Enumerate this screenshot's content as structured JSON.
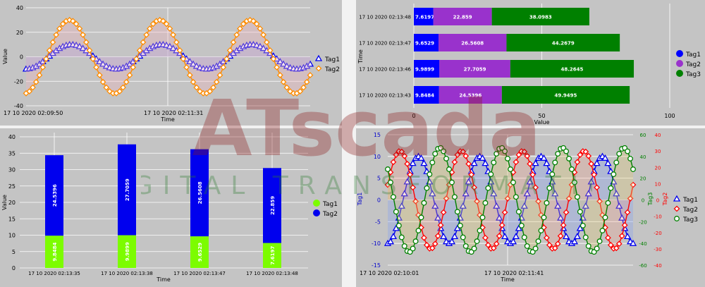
{
  "watermark": {
    "brand": "ATscada",
    "tagline": "DIGITAL TRANSFORMATION"
  },
  "chart_data": [
    {
      "type": "line",
      "xlabel": "Time",
      "ylabel": "Value",
      "ylim": [
        -40,
        40
      ],
      "yticks": [
        -40,
        -20,
        0,
        20,
        40
      ],
      "xticklabels": [
        "17 10 2020 02:09:50",
        "17 10 2020 02:11:31"
      ],
      "legend": "right",
      "series": [
        {
          "name": "Tag1",
          "color": "#0000ee",
          "marker": "triangle",
          "amplitude": 10,
          "period_points": 27,
          "n": 86
        },
        {
          "name": "Tag2",
          "color": "#ff8c00",
          "marker": "diamond",
          "amplitude": 30,
          "period_points": 27,
          "n": 86
        }
      ]
    },
    {
      "type": "bar",
      "orientation": "horizontal",
      "stacked": true,
      "categories": [
        "17 10 2020 02:13:48",
        "17 10 2020 02:13:47",
        "17 10 2020 02:13:46",
        "17 10 2020 02:13:43"
      ],
      "xlabel": "Value",
      "ylabel": "Time",
      "xlim": [
        0,
        100
      ],
      "xticks": [
        0,
        50,
        100
      ],
      "legend": "right",
      "series": [
        {
          "name": "Tag1",
          "color": "#0000ff",
          "values": [
            7.6197,
            9.6529,
            9.9899,
            9.8484
          ],
          "labels": [
            "7.6197",
            "9.6529",
            "9.9899",
            "9.8484"
          ]
        },
        {
          "name": "Tag2",
          "color": "#9932cc",
          "values": [
            22.859,
            26.5608,
            27.7059,
            24.5396
          ],
          "labels": [
            "22.859",
            "26.5608",
            "27.7059",
            "24.5396"
          ]
        },
        {
          "name": "Tag3",
          "color": "#008000",
          "values": [
            38.0983,
            44.2679,
            48.2645,
            49.9495
          ],
          "labels": [
            "38.0983",
            "44.2679",
            "48.2645",
            "49.9495"
          ]
        }
      ]
    },
    {
      "type": "bar",
      "orientation": "vertical",
      "stacked": true,
      "categories": [
        "17 10 2020 02:13:35",
        "17 10 2020 02:13:38",
        "17 10 2020 02:13:47",
        "17 10 2020 02:13:48"
      ],
      "xlabel": "Time",
      "ylabel": "Value",
      "ylim": [
        0,
        40
      ],
      "yticks": [
        0,
        5,
        10,
        15,
        20,
        25,
        30,
        35,
        40
      ],
      "legend": "right",
      "series": [
        {
          "name": "Tag1",
          "color": "#7cfc00",
          "values": [
            9.8484,
            9.9899,
            9.6529,
            7.6197
          ],
          "labels": [
            "9.8484",
            "9.9899",
            "9.6529",
            "7.6197"
          ]
        },
        {
          "name": "Tag2",
          "color": "#0000ee",
          "values": [
            24.5396,
            27.7059,
            26.5608,
            22.859
          ],
          "labels": [
            "24.5396",
            "27.7059",
            "26.5608",
            "22.859"
          ]
        }
      ]
    },
    {
      "type": "line",
      "xlabel": "Time",
      "axes": {
        "tag1": {
          "label": "Tag1",
          "range": [
            -15,
            15
          ],
          "color": "#0000cc"
        },
        "tag3": {
          "label": "Tag3",
          "range": [
            -60,
            60
          ],
          "color": "#008000"
        },
        "tag2": {
          "label": "Tag2",
          "range": [
            -40,
            40
          ],
          "color": "#ff0000"
        }
      },
      "tag1ticks": [
        -15,
        -10,
        -5,
        0,
        5,
        10,
        15
      ],
      "tag3ticks": [
        -60,
        -40,
        -20,
        0,
        20,
        40,
        60
      ],
      "tag2ticks": [
        -40,
        -30,
        -20,
        -10,
        0,
        10,
        20,
        30,
        40
      ],
      "xticklabels": [
        "17 10 2020 02:10:01",
        "17 10 2020 02:11:41"
      ],
      "legend": "right",
      "series": [
        {
          "name": "Tag1",
          "color": "#0000ee",
          "marker": "triangle",
          "axis": "tag1",
          "amplitude": 10,
          "period_points": 22,
          "phase": 0,
          "n": 89
        },
        {
          "name": "Tag2",
          "color": "#ff0000",
          "marker": "diamond",
          "axis": "tag2",
          "amplitude": 30,
          "period_points": 22,
          "phase": 0.3,
          "n": 89
        },
        {
          "name": "Tag3",
          "color": "#008000",
          "marker": "circle",
          "axis": "tag3",
          "amplitude": 48,
          "period_points": 22,
          "phase": -0.35,
          "n": 89
        }
      ]
    }
  ]
}
